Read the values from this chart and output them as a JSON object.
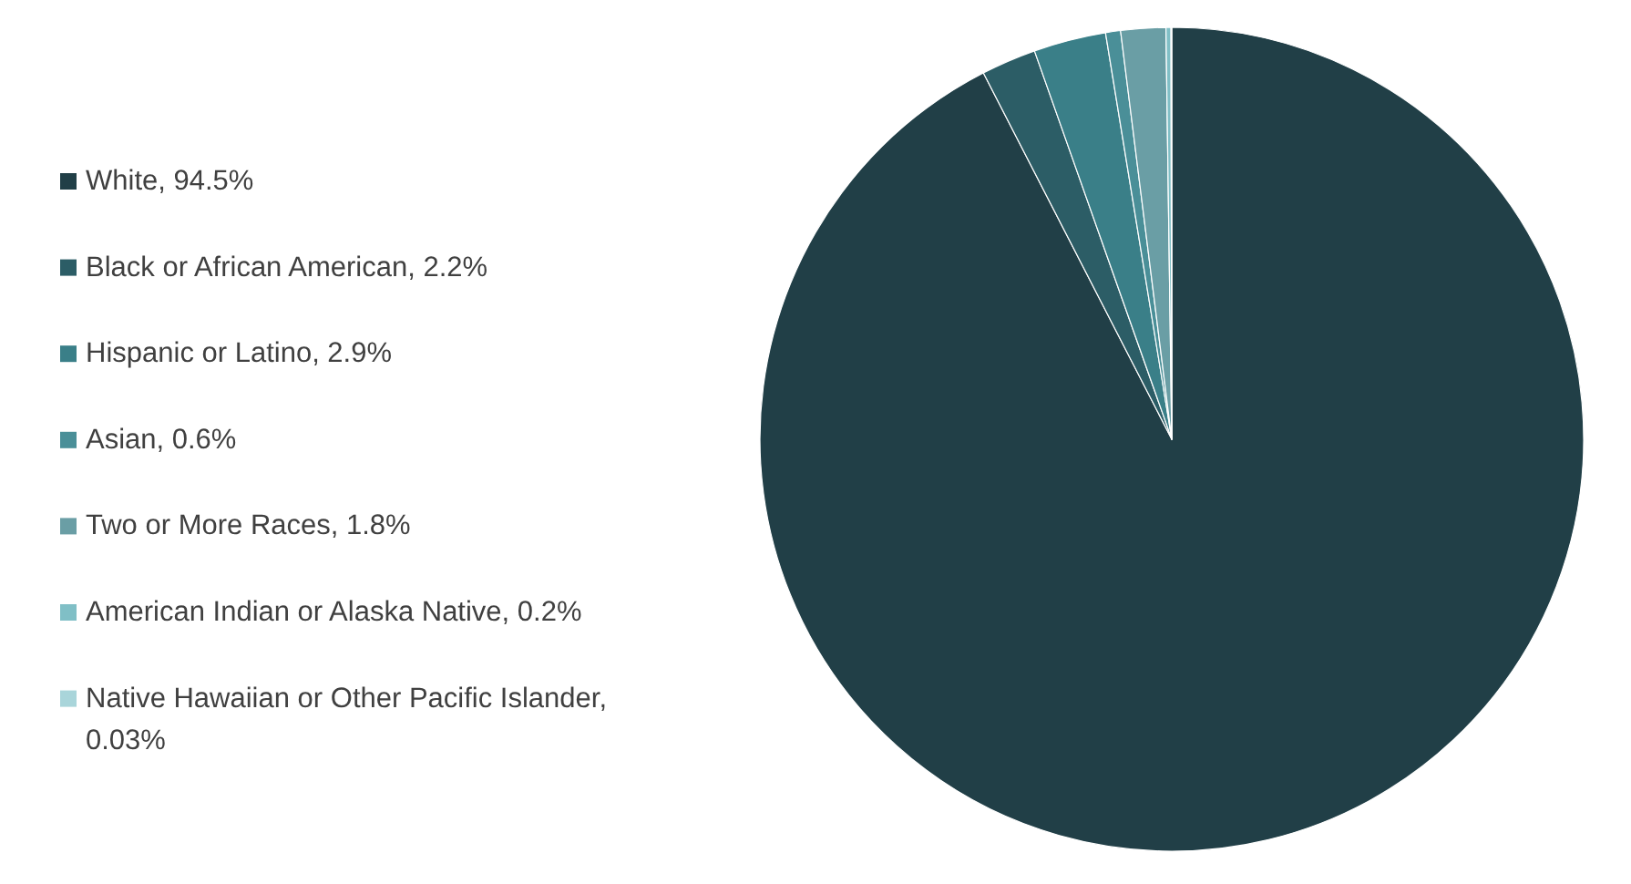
{
  "chart_data": {
    "type": "pie",
    "categories": [
      "White, 94.5%",
      "Black or African American, 2.2%",
      "Hispanic or Latino, 2.9%",
      "Asian, 0.6%",
      "Two or More Races, 1.8%",
      "American Indian or Alaska Native, 0.2%",
      "Native Hawaiian or Other Pacific Islander, 0.03%"
    ],
    "values": [
      94.5,
      2.2,
      2.9,
      0.6,
      1.8,
      0.2,
      0.03
    ],
    "colors": [
      "#213f47",
      "#2c5d66",
      "#3a7f88",
      "#4a8f98",
      "#6a9ea5",
      "#80bfc6",
      "#a9d5da"
    ],
    "legend": "left"
  }
}
